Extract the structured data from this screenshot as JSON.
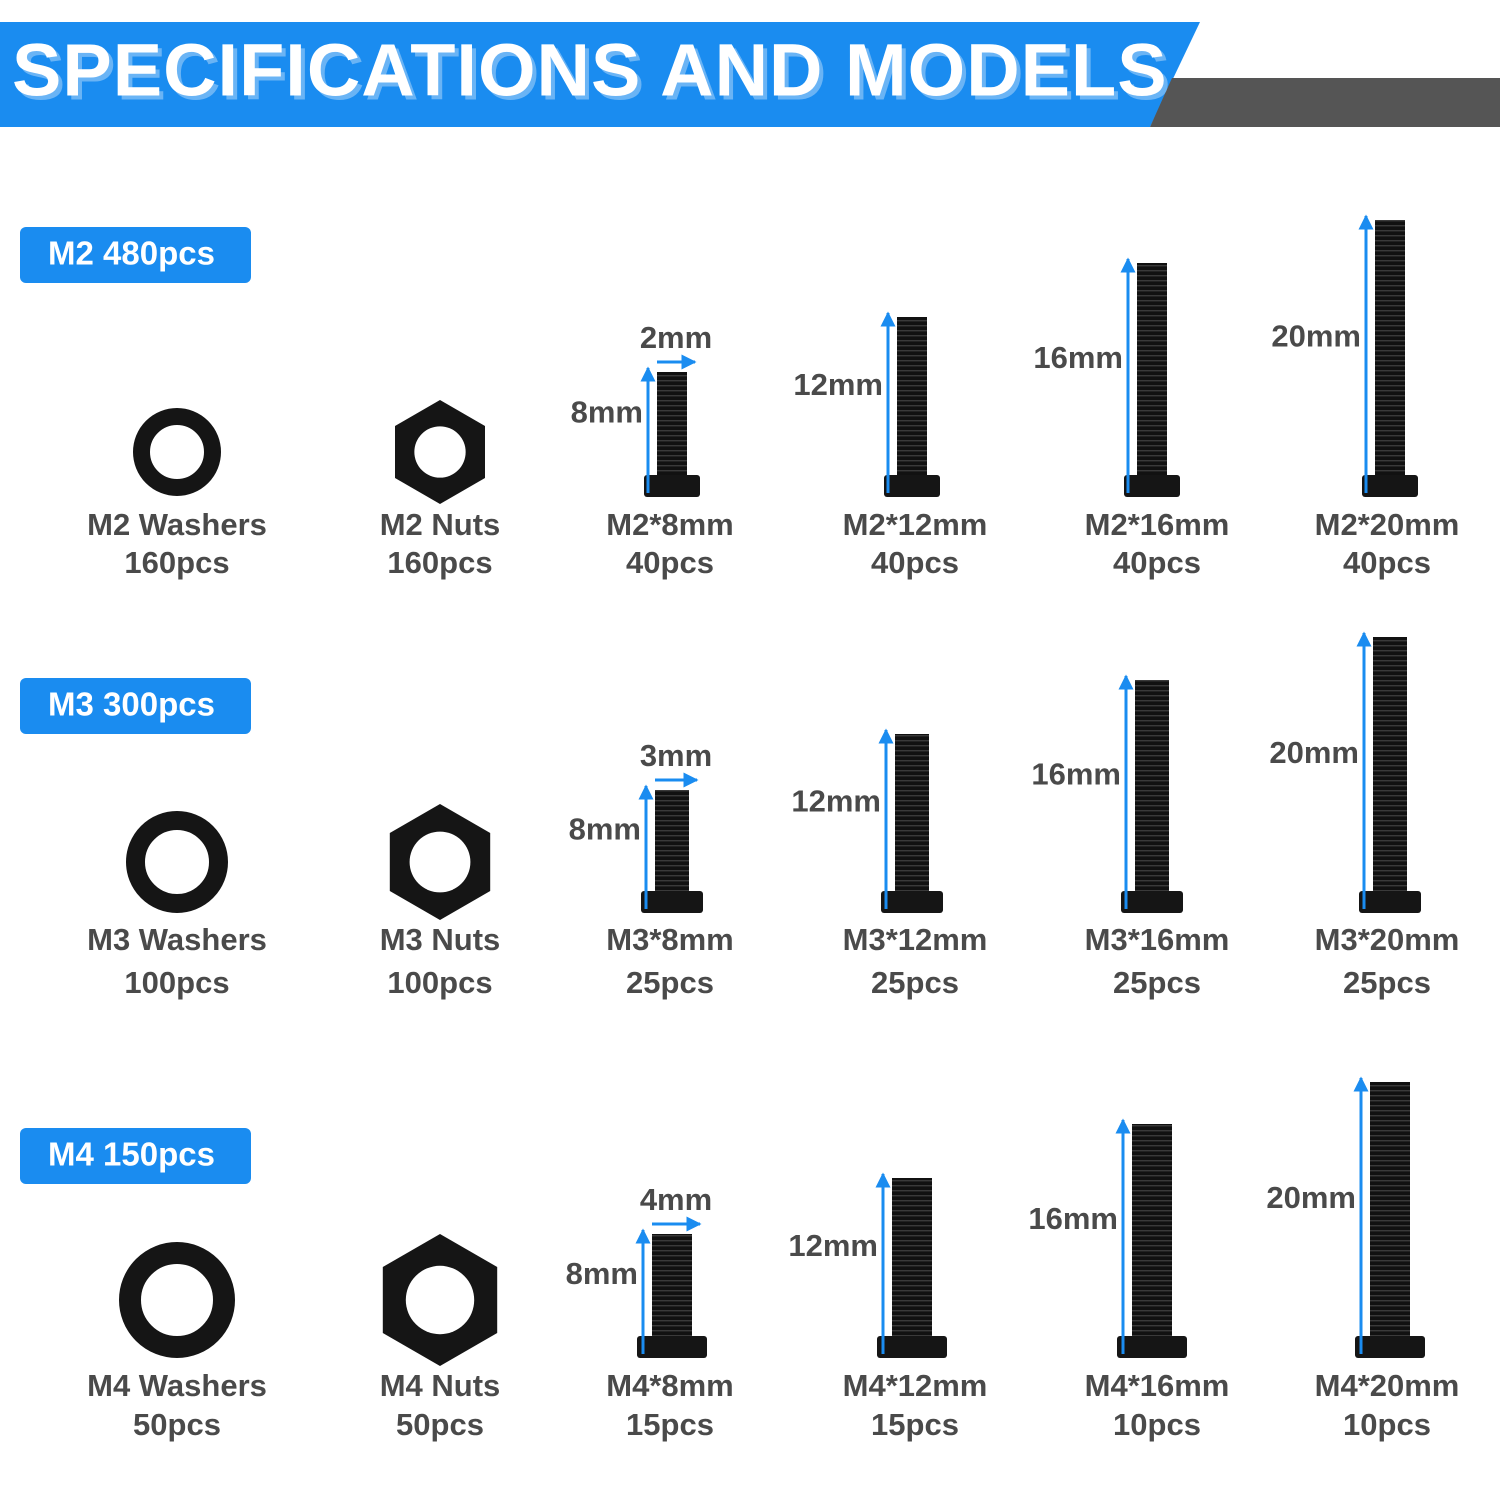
{
  "header": {
    "title": "SPECIFICATIONS AND MODELS"
  },
  "sections": [
    {
      "badge": "M2 480pcs",
      "items": [
        {
          "name": "M2 Washers",
          "count": "160pcs"
        },
        {
          "name": "M2 Nuts",
          "count": "160pcs"
        },
        {
          "name": "M2*8mm",
          "count": "40pcs",
          "length": "8mm",
          "diameter": "2mm"
        },
        {
          "name": "M2*12mm",
          "count": "40pcs",
          "length": "12mm"
        },
        {
          "name": "M2*16mm",
          "count": "40pcs",
          "length": "16mm"
        },
        {
          "name": "M2*20mm",
          "count": "40pcs",
          "length": "20mm"
        }
      ]
    },
    {
      "badge": "M3 300pcs",
      "items": [
        {
          "name": "M3 Washers",
          "count": "100pcs"
        },
        {
          "name": "M3 Nuts",
          "count": "100pcs"
        },
        {
          "name": "M3*8mm",
          "count": "25pcs",
          "length": "8mm",
          "diameter": "3mm"
        },
        {
          "name": "M3*12mm",
          "count": "25pcs",
          "length": "12mm"
        },
        {
          "name": "M3*16mm",
          "count": "25pcs",
          "length": "16mm"
        },
        {
          "name": "M3*20mm",
          "count": "25pcs",
          "length": "20mm"
        }
      ]
    },
    {
      "badge": "M4 150pcs",
      "items": [
        {
          "name": "M4 Washers",
          "count": "50pcs"
        },
        {
          "name": "M4 Nuts",
          "count": "50pcs"
        },
        {
          "name": "M4*8mm",
          "count": "15pcs",
          "length": "8mm",
          "diameter": "4mm"
        },
        {
          "name": "M4*12mm",
          "count": "15pcs",
          "length": "12mm"
        },
        {
          "name": "M4*16mm",
          "count": "10pcs",
          "length": "16mm"
        },
        {
          "name": "M4*20mm",
          "count": "10pcs",
          "length": "20mm"
        }
      ]
    }
  ]
}
